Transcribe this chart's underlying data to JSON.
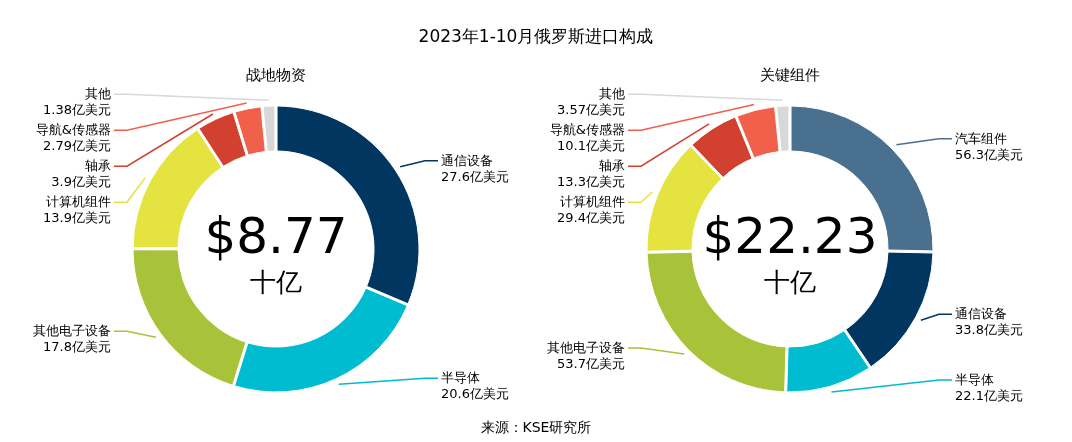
{
  "chart_data": [
    {
      "type": "donut",
      "title": "战地物资",
      "categories": [
        "通信设备",
        "半导体",
        "其他电子设备",
        "计算机组件",
        "轴承",
        "导航&传感器",
        "其他"
      ],
      "values": [
        27.6,
        20.6,
        17.8,
        13.9,
        3.9,
        2.79,
        1.38
      ],
      "value_labels": [
        "27.6亿美元",
        "20.6亿美元",
        "17.8亿美元",
        "13.9亿美元",
        "3.9亿美元",
        "2.79亿美元",
        "1.38亿美元"
      ],
      "colors": [
        "#003660",
        "#00bcd0",
        "#a8c23a",
        "#e4e33f",
        "#d24030",
        "#f0604a",
        "#d8d8d8"
      ],
      "annotations": [
        "2023年1-10月俄罗斯进口构成",
        "$8.77",
        "十亿"
      ]
    },
    {
      "type": "donut",
      "title": "关键组件",
      "categories": [
        "汽车组件",
        "通信设备",
        "半导体",
        "其他电子设备",
        "计算机组件",
        "轴承",
        "导航&传感器",
        "其他"
      ],
      "values": [
        56.3,
        33.8,
        22.1,
        53.7,
        29.4,
        13.3,
        10.1,
        3.57
      ],
      "value_labels": [
        "56.3亿美元",
        "33.8亿美元",
        "22.1亿美元",
        "53.7亿美元",
        "29.4亿美元",
        "13.3亿美元",
        "10.1亿美元",
        "3.57亿美元"
      ],
      "colors": [
        "#4a7090",
        "#003660",
        "#00bcd0",
        "#a8c23a",
        "#e4e33f",
        "#d24030",
        "#f0604a",
        "#d8d8d8"
      ],
      "annotations": [
        "来源：KSE研究所",
        "$22.23",
        "十亿"
      ]
    }
  ]
}
